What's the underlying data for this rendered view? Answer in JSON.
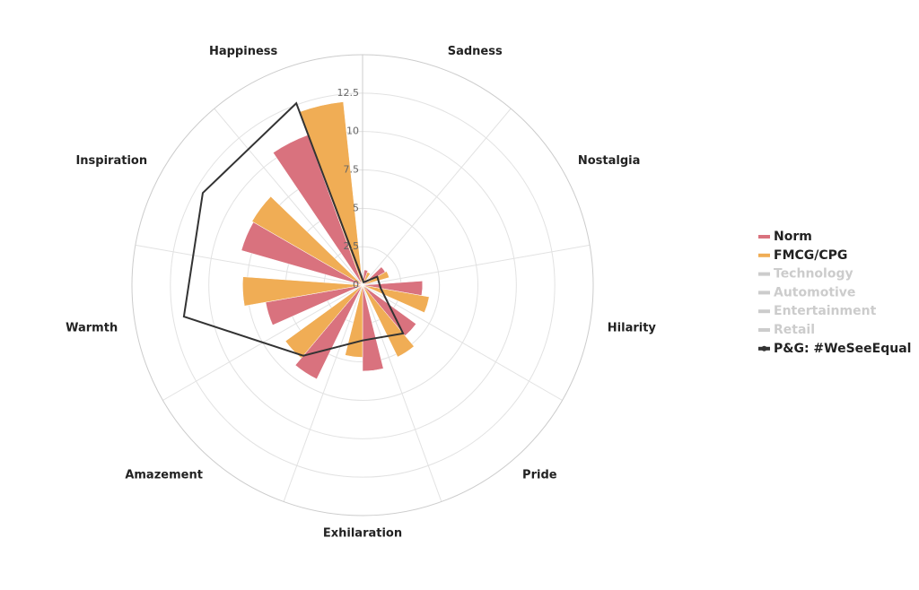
{
  "chart_data": {
    "type": "polar_bar",
    "categories": [
      "Sadness",
      "Nostalgia",
      "Hilarity",
      "Pride",
      "Exhilaration",
      "Amazement",
      "Warmth",
      "Inspiration",
      "Happiness"
    ],
    "ylim": [
      0,
      15
    ],
    "yticks": [
      0,
      2.5,
      5,
      7.5,
      10,
      12.5
    ],
    "grid": true,
    "legend": "right",
    "series": [
      {
        "name": "Norm",
        "color": "#d9727e",
        "kind": "bar",
        "values": [
          1.0,
          1.7,
          3.9,
          4.3,
          5.6,
          6.8,
          6.4,
          8.2,
          10.4
        ]
      },
      {
        "name": "FMCG/CPG",
        "color": "#f0ad55",
        "kind": "bar",
        "values": [
          0.9,
          1.8,
          4.4,
          5.2,
          4.7,
          6.2,
          7.8,
          8.3,
          12.0
        ]
      },
      {
        "name": "Technology",
        "color": "#cccccc",
        "visible": false
      },
      {
        "name": "Automotive",
        "color": "#cccccc",
        "visible": false
      },
      {
        "name": "Entertainment",
        "color": "#cccccc",
        "visible": false
      },
      {
        "name": "Retail",
        "color": "#cccccc",
        "visible": false
      },
      {
        "name": "P&G: #WeSeeEqual",
        "color": "#333333",
        "kind": "line",
        "values": [
          0.2,
          1.1,
          1.2,
          4.1,
          3.6,
          6.0,
          11.8,
          12.0,
          12.6
        ]
      }
    ]
  }
}
